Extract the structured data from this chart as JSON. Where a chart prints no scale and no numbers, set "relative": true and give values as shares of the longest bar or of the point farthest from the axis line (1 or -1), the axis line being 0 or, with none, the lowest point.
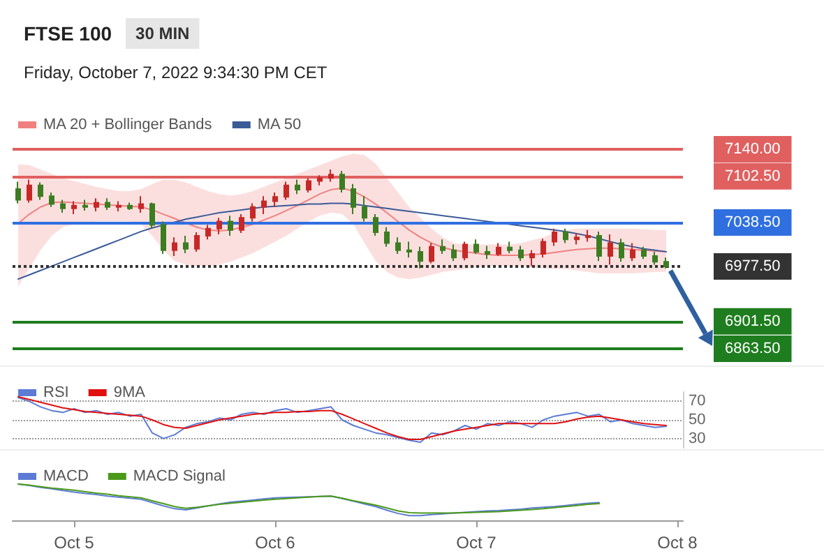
{
  "chart_data": [
    {
      "type": "candlestick",
      "title": "FTSE 100",
      "subtitle": "Friday, October 7, 2022 9:34:30 PM CET",
      "annotations": [
        "30 MIN"
      ],
      "categories": [
        null,
        null,
        null,
        null,
        null,
        null,
        null,
        null,
        null,
        null,
        null,
        null,
        null,
        null,
        null,
        null,
        null,
        null,
        null,
        null,
        null,
        null,
        null,
        null,
        null,
        null,
        null,
        null,
        null,
        null,
        null,
        null,
        null,
        null,
        null,
        null,
        null,
        null,
        null,
        null,
        null,
        null,
        null,
        null,
        null,
        null,
        null,
        null,
        null,
        null,
        null,
        null,
        null,
        null,
        null,
        null,
        null,
        null,
        null,
        null
      ],
      "ylim": [
        6863.5,
        7140
      ],
      "yticks": [
        {
          "value": 6863.5,
          "label": "6863.50"
        },
        {
          "value": 6901.5,
          "label": "6901.50"
        },
        {
          "value": 6977.5,
          "label": "6977.50"
        },
        {
          "value": 7038.5,
          "label": "7038.50"
        },
        {
          "value": 7102.5,
          "label": "7102.50"
        },
        {
          "value": 7140,
          "label": "7140.00"
        }
      ],
      "tick_labels": "y",
      "legend": "top left",
      "ohlc": [
        [
          7085,
          7095,
          7065,
          7070
        ],
        [
          7070,
          7098,
          7066,
          7090
        ],
        [
          7090,
          7094,
          7070,
          7075
        ],
        [
          7075,
          7080,
          7060,
          7064
        ],
        [
          7064,
          7070,
          7052,
          7058
        ],
        [
          7058,
          7068,
          7050,
          7062
        ],
        [
          7062,
          7070,
          7055,
          7060
        ],
        [
          7060,
          7072,
          7054,
          7066
        ],
        [
          7066,
          7072,
          7056,
          7060
        ],
        [
          7060,
          7068,
          7054,
          7062
        ],
        [
          7062,
          7066,
          7056,
          7058
        ],
        [
          7058,
          7075,
          7052,
          7064
        ],
        [
          7064,
          7066,
          7030,
          7035
        ],
        [
          7035,
          7040,
          6995,
          7000
        ],
        [
          7000,
          7018,
          6992,
          7010
        ],
        [
          7010,
          7020,
          6996,
          7002
        ],
        [
          7002,
          7025,
          6998,
          7020
        ],
        [
          7020,
          7035,
          7015,
          7030
        ],
        [
          7030,
          7045,
          7022,
          7040
        ],
        [
          7040,
          7048,
          7020,
          7028
        ],
        [
          7028,
          7050,
          7024,
          7045
        ],
        [
          7045,
          7065,
          7040,
          7060
        ],
        [
          7060,
          7075,
          7050,
          7068
        ],
        [
          7068,
          7080,
          7060,
          7074
        ],
        [
          7074,
          7095,
          7070,
          7090
        ],
        [
          7090,
          7098,
          7078,
          7084
        ],
        [
          7084,
          7100,
          7080,
          7096
        ],
        [
          7096,
          7104,
          7090,
          7100
        ],
        [
          7100,
          7112,
          7095,
          7105
        ],
        [
          7105,
          7110,
          7080,
          7085
        ],
        [
          7085,
          7092,
          7050,
          7060
        ],
        [
          7060,
          7075,
          7040,
          7045
        ],
        [
          7045,
          7050,
          7020,
          7025
        ],
        [
          7025,
          7032,
          7005,
          7010
        ],
        [
          7010,
          7018,
          6995,
          7000
        ],
        [
          7000,
          7012,
          6990,
          6998
        ],
        [
          6998,
          7005,
          6975,
          6985
        ],
        [
          6985,
          7010,
          6982,
          7005
        ],
        [
          7005,
          7015,
          6995,
          7000
        ],
        [
          7000,
          7008,
          6985,
          6990
        ],
        [
          6990,
          7012,
          6986,
          7008
        ],
        [
          7008,
          7015,
          6995,
          6998
        ],
        [
          6998,
          7006,
          6988,
          6995
        ],
        [
          6995,
          7010,
          6992,
          7004
        ],
        [
          7004,
          7012,
          6996,
          7000
        ],
        [
          7000,
          7006,
          6985,
          6990
        ],
        [
          6990,
          7000,
          6978,
          6995
        ],
        [
          6995,
          7016,
          6990,
          7012
        ],
        [
          7012,
          7030,
          7006,
          7025
        ],
        [
          7025,
          7030,
          7010,
          7015
        ],
        [
          7015,
          7024,
          7008,
          7018
        ],
        [
          7018,
          7028,
          7012,
          7020
        ],
        [
          7020,
          7026,
          6985,
          6992
        ],
        [
          6992,
          7022,
          6980,
          7010
        ],
        [
          7010,
          7016,
          6984,
          6990
        ],
        [
          6990,
          7010,
          6985,
          7000
        ],
        [
          7000,
          7005,
          6988,
          6992
        ],
        [
          6992,
          6998,
          6980,
          6984
        ],
        [
          6984,
          6990,
          6975,
          6977.5
        ],
        null
      ],
      "colors": [
        "#3c7d22",
        "#c62828",
        "#3c7d22",
        "#3c7d22",
        "#3c7d22",
        "#c62828",
        "#3c7d22",
        "#c62828",
        "#3c7d22",
        "#c62828",
        "#3c7d22",
        "#c62828",
        "#3c7d22",
        "#3c7d22",
        "#c62828",
        "#3c7d22",
        "#c62828",
        "#c62828",
        "#c62828",
        "#3c7d22",
        "#c62828",
        "#c62828",
        "#c62828",
        "#c62828",
        "#c62828",
        "#3c7d22",
        "#c62828",
        "#c62828",
        "#c62828",
        "#3c7d22",
        "#3c7d22",
        "#3c7d22",
        "#3c7d22",
        "#3c7d22",
        "#3c7d22",
        "#3c7d22",
        "#3c7d22",
        "#c62828",
        "#3c7d22",
        "#3c7d22",
        "#c62828",
        "#3c7d22",
        "#3c7d22",
        "#c62828",
        "#3c7d22",
        "#3c7d22",
        "#c62828",
        "#c62828",
        "#c62828",
        "#3c7d22",
        "#c62828",
        "#c62828",
        "#3c7d22",
        "#c62828",
        "#3c7d22",
        "#c62828",
        "#3c7d22",
        "#3c7d22",
        "#3c7d22",
        null
      ],
      "series": [
        {
          "type": "line",
          "name": "MA 20 + Bollinger Bands",
          "color": "#f08080",
          "values": [
            7037,
            7050,
            7060,
            7066,
            7067,
            7066,
            7065,
            7064,
            7063,
            7062,
            7061,
            7060,
            7056,
            7050,
            7044,
            7038,
            7032,
            7028,
            7027,
            7028,
            7032,
            7036,
            7042,
            7048,
            7055,
            7062,
            7070,
            7078,
            7084,
            7086,
            7082,
            7074,
            7064,
            7052,
            7040,
            7028,
            7018,
            7010,
            7004,
            7000,
            6998,
            6996,
            6994,
            6993,
            6993,
            6993,
            6994,
            6995,
            6997,
            6999,
            7001,
            7002,
            7003,
            7003,
            7002,
            7001,
            7000,
            6999,
            6998,
            null
          ],
          "lower": [
            6950,
            6975,
            7000,
            7020,
            7032,
            7036,
            7038,
            7040,
            7040,
            7040,
            7040,
            7036,
            7020,
            7000,
            6985,
            6980,
            6978,
            6978,
            6980,
            6984,
            6990,
            6996,
            7004,
            7012,
            7020,
            7030,
            7040,
            7048,
            7052,
            7050,
            7036,
            7010,
            6985,
            6970,
            6962,
            6960,
            6962,
            6966,
            6970,
            6972,
            6974,
            6976,
            6978,
            6978,
            6978,
            6978,
            6976,
            6975,
            6974,
            6974,
            6972,
            6970,
            6968,
            6968,
            6968,
            6968,
            6969,
            6970,
            6970,
            null
          ],
          "upper": [
            7119,
            7118,
            7112,
            7106,
            7100,
            7096,
            7092,
            7088,
            7085,
            7082,
            7082,
            7085,
            7092,
            7098,
            7098,
            7094,
            7088,
            7082,
            7078,
            7076,
            7078,
            7082,
            7088,
            7094,
            7100,
            7106,
            7112,
            7118,
            7124,
            7130,
            7134,
            7132,
            7120,
            7100,
            7080,
            7060,
            7045,
            7030,
            7018,
            7010,
            7008,
            7008,
            7008,
            7008,
            7008,
            7010,
            7014,
            7018,
            7024,
            7028,
            7030,
            7030,
            7030,
            7030,
            7030,
            7030,
            7029,
            7028,
            7028,
            null
          ]
        },
        {
          "type": "line",
          "name": "MA 50",
          "color": "#3a5a98",
          "values": [
            6960,
            6966,
            6972,
            6978,
            6984,
            6990,
            6996,
            7002,
            7008,
            7014,
            7020,
            7026,
            7031,
            7035,
            7039,
            7043,
            7046,
            7049,
            7052,
            7054,
            7056,
            7058,
            7060,
            7061,
            7062,
            7063,
            7064,
            7064,
            7065,
            7065,
            7064,
            7062,
            7060,
            7058,
            7056,
            7054,
            7052,
            7050,
            7048,
            7046,
            7044,
            7042,
            7040,
            7038,
            7036,
            7034,
            7032,
            7030,
            7028,
            7026,
            7023,
            7020,
            7016,
            7012,
            7008,
            7005,
            7002,
            7000,
            6998,
            null
          ]
        }
      ],
      "ref_lines": [
        {
          "axis": "y",
          "value": 7140,
          "color": "#e06060"
        },
        {
          "axis": "y",
          "value": 7102.5,
          "color": "#e06060"
        },
        {
          "axis": "y",
          "value": 7038.5,
          "color": "#2f6fe0"
        },
        {
          "axis": "y",
          "value": 6977.5,
          "color": "#333333",
          "line_style": "dotted"
        },
        {
          "axis": "y",
          "value": 6901.5,
          "color": "#1e7d1e"
        },
        {
          "axis": "y",
          "value": 6863.5,
          "color": "#1e7d1e"
        }
      ]
    },
    {
      "type": "line",
      "categories": [
        null,
        null,
        null,
        null,
        null,
        null,
        null,
        null,
        null,
        null,
        null,
        null,
        null,
        null,
        null,
        null,
        null,
        null,
        null,
        null,
        null,
        null,
        null,
        null,
        null,
        null,
        null,
        null,
        null,
        null,
        null,
        null,
        null,
        null,
        null,
        null,
        null,
        null,
        null,
        null,
        null,
        null,
        null,
        null,
        null,
        null,
        null,
        null,
        null,
        null,
        null,
        null,
        null,
        null,
        null,
        null,
        null,
        null,
        null,
        null
      ],
      "ylim": [
        20,
        80
      ],
      "yticks": [
        30,
        50,
        70
      ],
      "tick_labels": "y",
      "grid": "y",
      "legend": "top left",
      "series": [
        {
          "name": "RSI",
          "color": "#5b7bd5",
          "values": [
            74,
            70,
            64,
            60,
            58,
            62,
            58,
            60,
            56,
            58,
            54,
            56,
            36,
            30,
            34,
            42,
            46,
            48,
            52,
            50,
            56,
            58,
            56,
            60,
            62,
            58,
            60,
            62,
            64,
            50,
            44,
            40,
            36,
            34,
            31,
            28,
            26,
            36,
            34,
            38,
            44,
            40,
            46,
            44,
            48,
            46,
            42,
            50,
            54,
            56,
            58,
            54,
            56,
            48,
            50,
            46,
            44,
            42,
            43,
            null
          ]
        },
        {
          "name": "9MA",
          "color": "#e01010",
          "values": [
            75,
            72,
            69,
            66,
            63,
            61,
            59,
            58,
            57,
            56,
            55,
            54,
            50,
            45,
            42,
            41,
            44,
            47,
            50,
            52,
            54,
            56,
            57,
            58,
            58,
            59,
            59,
            60,
            60,
            56,
            51,
            46,
            41,
            36,
            32,
            29,
            29,
            32,
            35,
            38,
            40,
            42,
            44,
            46,
            46,
            46,
            46,
            46,
            46,
            48,
            51,
            53,
            54,
            52,
            50,
            48,
            46,
            45,
            44,
            null
          ]
        }
      ]
    },
    {
      "type": "line",
      "relative": true,
      "categories": [
        null,
        null,
        null,
        null,
        null,
        "Oct 5",
        null,
        null,
        null,
        null,
        null,
        null,
        null,
        null,
        null,
        null,
        null,
        null,
        null,
        null,
        null,
        null,
        null,
        "Oct 6",
        null,
        null,
        null,
        null,
        null,
        null,
        null,
        null,
        null,
        null,
        null,
        null,
        null,
        null,
        null,
        null,
        null,
        "Oct 7",
        null,
        null,
        null,
        null,
        null,
        null,
        null,
        null,
        null,
        null,
        null,
        null,
        null,
        null,
        null,
        null,
        null,
        "Oct 8"
      ],
      "tick_labels": "x",
      "legend": "top left",
      "series": [
        {
          "name": "MACD",
          "color": "#5b7bd5",
          "values": [
            1,
            0.96,
            0.91,
            0.87,
            0.82,
            0.78,
            0.74,
            0.71,
            0.67,
            0.64,
            0.61,
            0.58,
            0.49,
            0.4,
            0.32,
            0.29,
            0.34,
            0.4,
            0.45,
            0.5,
            0.53,
            0.56,
            0.59,
            0.62,
            0.63,
            0.64,
            0.65,
            0.66,
            0.67,
            0.6,
            0.53,
            0.45,
            0.38,
            0.28,
            0.19,
            0.13,
            0.13,
            0.16,
            0.18,
            0.2,
            0.22,
            0.24,
            0.26,
            0.27,
            0.29,
            0.31,
            0.34,
            0.36,
            0.38,
            0.41,
            0.44,
            0.47,
            0.49,
            null,
            null,
            null,
            null,
            null,
            null,
            null
          ]
        },
        {
          "name": "MACD Signal",
          "color": "#4a9a1a",
          "values": [
            1,
            0.97,
            0.93,
            0.89,
            0.86,
            0.83,
            0.79,
            0.75,
            0.72,
            0.68,
            0.65,
            0.62,
            0.54,
            0.46,
            0.38,
            0.33,
            0.36,
            0.4,
            0.44,
            0.47,
            0.5,
            0.53,
            0.56,
            0.58,
            0.6,
            0.62,
            0.64,
            0.66,
            0.67,
            0.61,
            0.54,
            0.48,
            0.42,
            0.34,
            0.26,
            0.21,
            0.2,
            0.2,
            0.2,
            0.2,
            0.21,
            0.22,
            0.23,
            0.24,
            0.26,
            0.28,
            0.3,
            0.32,
            0.35,
            0.38,
            0.41,
            0.44,
            0.46,
            null,
            null,
            null,
            null,
            null,
            null,
            null
          ]
        }
      ]
    }
  ]
}
